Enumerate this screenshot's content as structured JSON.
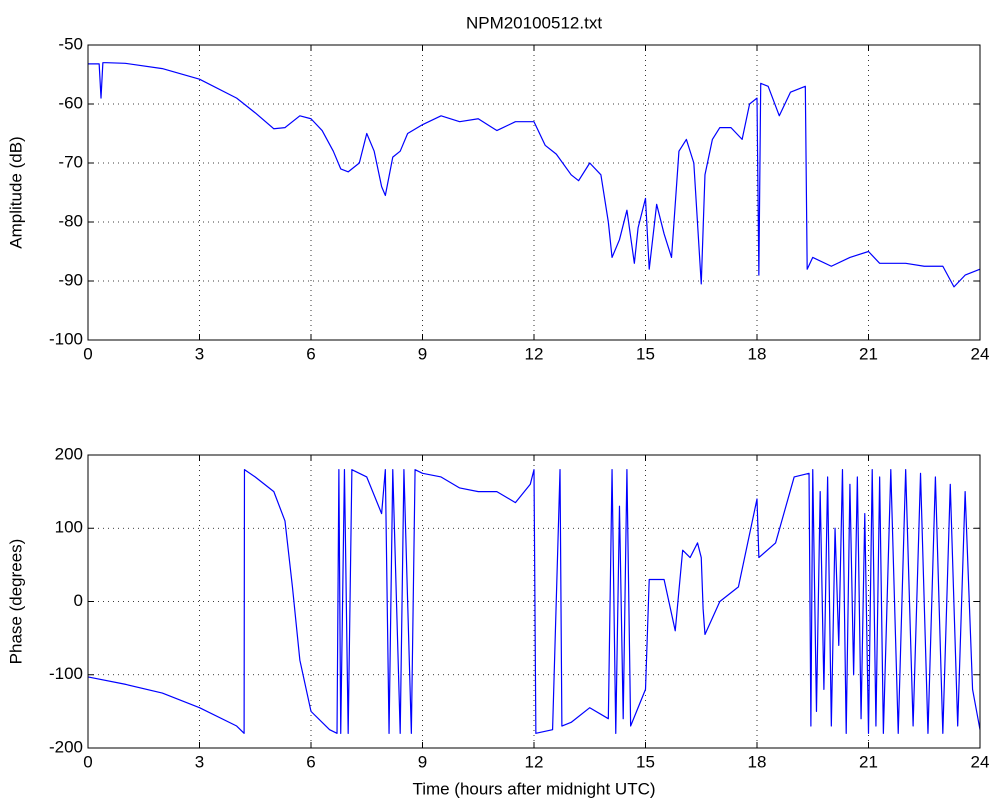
{
  "chart_data": [
    {
      "type": "line",
      "title": "NPM20100512.txt",
      "ylabel": "Amplitude (dB)",
      "color": "#0000ff",
      "grid": true,
      "xlim": [
        0,
        24
      ],
      "xticks": [
        0,
        3,
        6,
        9,
        12,
        15,
        18,
        21,
        24
      ],
      "ylim": [
        -100,
        -50
      ],
      "yticks": [
        -100,
        -90,
        -80,
        -70,
        -60,
        -50
      ],
      "x": [
        0,
        0.3,
        0.35,
        0.4,
        0.5,
        1,
        2,
        3,
        4,
        4.5,
        5,
        5.3,
        5.7,
        6,
        6.3,
        6.6,
        6.8,
        7,
        7.3,
        7.5,
        7.7,
        7.9,
        8,
        8.2,
        8.4,
        8.6,
        9,
        9.5,
        10,
        10.5,
        11,
        11.5,
        12,
        12.3,
        12.6,
        13,
        13.2,
        13.5,
        13.8,
        14,
        14.1,
        14.3,
        14.5,
        14.7,
        14.8,
        15,
        15.1,
        15.3,
        15.5,
        15.7,
        15.9,
        16.1,
        16.3,
        16.5,
        16.6,
        16.8,
        17,
        17.3,
        17.6,
        17.8,
        18,
        18.05,
        18.1,
        18.3,
        18.6,
        18.9,
        19.3,
        19.35,
        19.5,
        20,
        20.5,
        21,
        21.3,
        22,
        22.5,
        23,
        23.3,
        23.6,
        24
      ],
      "values": [
        -53.2,
        -53.2,
        -59,
        -53,
        -53,
        -53.1,
        -54,
        -55.8,
        -59,
        -61.5,
        -64.2,
        -64,
        -62,
        -62.5,
        -64.5,
        -68,
        -71,
        -71.5,
        -70,
        -65,
        -68,
        -74,
        -75.5,
        -69,
        -68,
        -65,
        -63.5,
        -62,
        -63,
        -62.5,
        -64.5,
        -63,
        -63,
        -67,
        -68.5,
        -72,
        -73,
        -70,
        -72,
        -80,
        -86,
        -83,
        -78,
        -87,
        -81,
        -76,
        -88,
        -77,
        -82,
        -86,
        -68,
        -66,
        -70,
        -90.5,
        -72,
        -66,
        -64,
        -64,
        -66,
        -60,
        -59,
        -89,
        -56.5,
        -57,
        -62,
        -58,
        -57,
        -88,
        -86,
        -87.5,
        -86,
        -85,
        -87,
        -87,
        -87.5,
        -87.5,
        -91,
        -89,
        -88
      ]
    },
    {
      "type": "line",
      "ylabel": "Phase (degrees)",
      "xlabel": "Time (hours after midnight UTC)",
      "color": "#0000ff",
      "grid": true,
      "xlim": [
        0,
        24
      ],
      "xticks": [
        0,
        3,
        6,
        9,
        12,
        15,
        18,
        21,
        24
      ],
      "ylim": [
        -200,
        200
      ],
      "yticks": [
        -200,
        -100,
        0,
        100,
        200
      ],
      "x": [
        0,
        1,
        2,
        3,
        4,
        4.2,
        4.21,
        4.5,
        5,
        5.3,
        5.5,
        5.7,
        6,
        6.5,
        6.7,
        6.75,
        6.8,
        6.9,
        7,
        7.1,
        7.5,
        7.9,
        8,
        8.1,
        8.2,
        8.4,
        8.5,
        8.7,
        8.8,
        9,
        9.5,
        10,
        10.5,
        11,
        11.5,
        11.9,
        12,
        12.05,
        12.5,
        12.7,
        12.75,
        13,
        13.5,
        14,
        14.1,
        14.2,
        14.3,
        14.4,
        14.5,
        14.6,
        15,
        15.1,
        15.5,
        15.8,
        16,
        16.2,
        16.4,
        16.5,
        16.55,
        16.6,
        17,
        17.5,
        18,
        18.05,
        18.5,
        19,
        19.4,
        19.45,
        19.5,
        19.6,
        19.7,
        19.8,
        19.9,
        20,
        20.1,
        20.2,
        20.3,
        20.4,
        20.5,
        20.6,
        20.7,
        20.8,
        20.9,
        21,
        21.1,
        21.2,
        21.3,
        21.4,
        21.6,
        21.8,
        22,
        22.2,
        22.4,
        22.6,
        22.8,
        23,
        23.2,
        23.4,
        23.6,
        23.8,
        24
      ],
      "values": [
        -103,
        -113,
        -125,
        -145,
        -170,
        -180,
        180,
        170,
        150,
        110,
        20,
        -80,
        -150,
        -175,
        -180,
        180,
        -180,
        180,
        -180,
        180,
        170,
        120,
        180,
        -180,
        180,
        -180,
        180,
        -180,
        180,
        175,
        170,
        155,
        150,
        150,
        135,
        160,
        180,
        -180,
        -175,
        180,
        -170,
        -165,
        -145,
        -160,
        180,
        -180,
        130,
        -160,
        180,
        -170,
        -120,
        30,
        30,
        -40,
        70,
        60,
        80,
        60,
        -10,
        -45,
        0,
        20,
        140,
        60,
        80,
        170,
        175,
        -170,
        180,
        -150,
        150,
        -120,
        170,
        -170,
        100,
        -60,
        180,
        -180,
        160,
        -100,
        170,
        -160,
        120,
        -180,
        180,
        -170,
        170,
        -180,
        180,
        -180,
        180,
        -170,
        175,
        -180,
        170,
        -180,
        160,
        -170,
        150,
        -120,
        -175
      ]
    }
  ]
}
